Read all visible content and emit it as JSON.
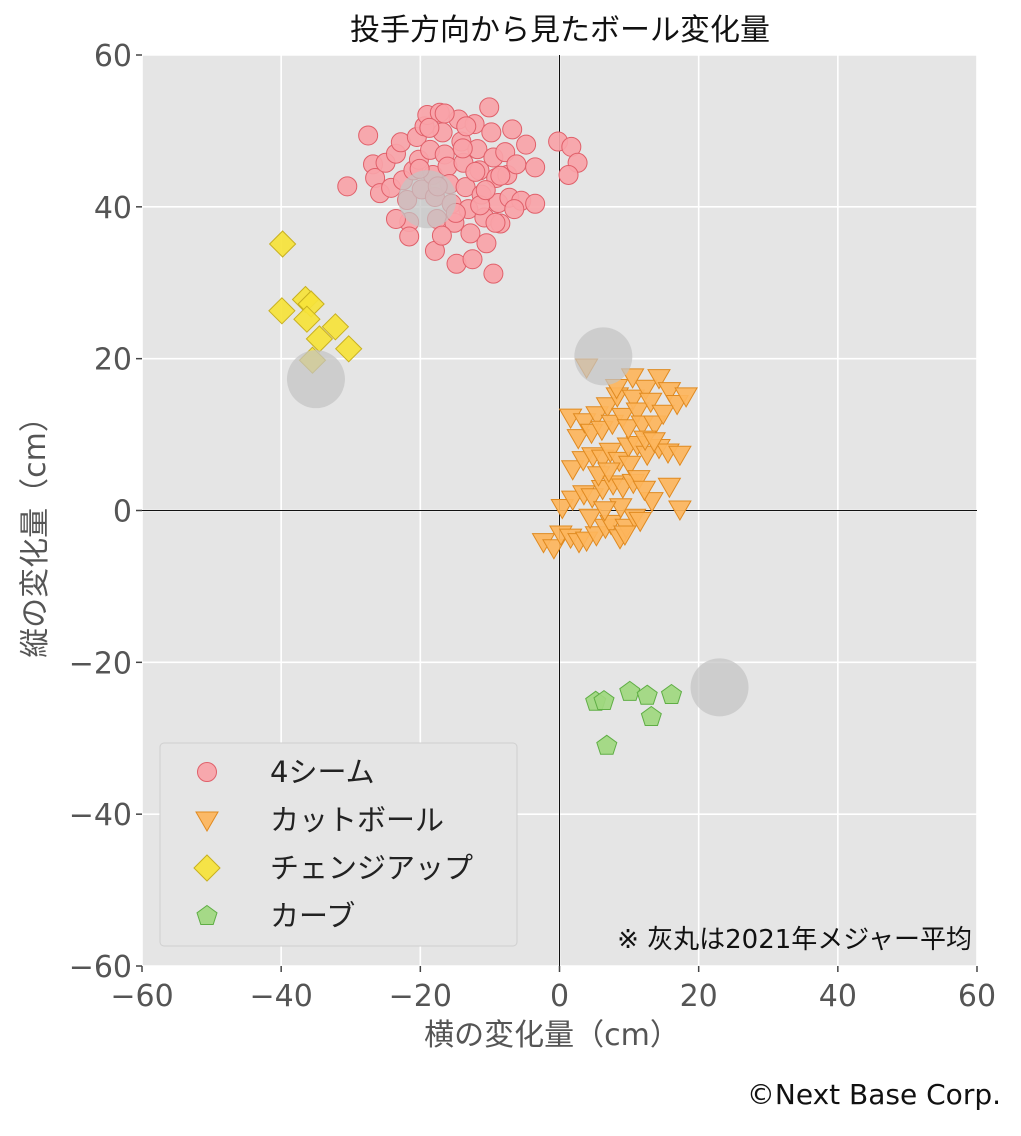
{
  "chart_data": {
    "type": "scatter",
    "title": "投手方向から見たボール変化量",
    "xlabel": "横の変化量（cm）",
    "ylabel": "縦の変化量（cm）",
    "xlim": [
      -60,
      60
    ],
    "ylim": [
      -60,
      60
    ],
    "xticks": [
      -60,
      -40,
      -20,
      0,
      20,
      40,
      60
    ],
    "yticks": [
      -60,
      -40,
      -20,
      0,
      20,
      40,
      60
    ],
    "xtick_labels": [
      "−60",
      "−40",
      "−20",
      "0",
      "20",
      "40",
      "60"
    ],
    "ytick_labels": [
      "−60",
      "−40",
      "−20",
      "0",
      "20",
      "40",
      "60"
    ],
    "grid": true,
    "legend_position": "bottom-left",
    "annotation": "※ 灰丸は2021年メジャー平均",
    "credit": "©Next Base Corp.",
    "colors": {
      "background": "#e5e5e5",
      "four_seam": "#f9a3a8",
      "four_seam_edge": "#e0606a",
      "cutter": "#fdb55c",
      "cutter_edge": "#e08a20",
      "changeup": "#f6e33a",
      "changeup_edge": "#c8b020",
      "curve": "#9fd87f",
      "curve_edge": "#5fae45",
      "average": "#c4c4c4"
    },
    "averages": [
      {
        "x": -19,
        "y": 41
      },
      {
        "x": -35,
        "y": 17.3
      },
      {
        "x": 6.3,
        "y": 20.3
      },
      {
        "x": 23,
        "y": -23.3
      }
    ],
    "series": [
      {
        "name": "4シーム",
        "marker": "circle",
        "points": [
          [
            -27.5,
            49.4
          ],
          [
            -26.8,
            45.6
          ],
          [
            -26.5,
            43.8
          ],
          [
            -25.8,
            41.8
          ],
          [
            -25,
            45.8
          ],
          [
            -24.2,
            42.5
          ],
          [
            -23.5,
            47
          ],
          [
            -22.8,
            48.5
          ],
          [
            -22.5,
            43.5
          ],
          [
            -21.9,
            40.9
          ],
          [
            -21.6,
            38
          ],
          [
            -21.6,
            36.1
          ],
          [
            -21,
            44.8
          ],
          [
            -20.5,
            49.2
          ],
          [
            -20.2,
            46.2
          ],
          [
            -19.8,
            42.3
          ],
          [
            -19.4,
            50.6
          ],
          [
            -19,
            52.1
          ],
          [
            -18.6,
            47.5
          ],
          [
            -18.2,
            44.2
          ],
          [
            -17.9,
            41.3
          ],
          [
            -17.6,
            38.4
          ],
          [
            -17.9,
            34.2
          ],
          [
            -17.2,
            52.4
          ],
          [
            -16.8,
            49.8
          ],
          [
            -16.5,
            46.9
          ],
          [
            -16.1,
            45.3
          ],
          [
            -15.8,
            43
          ],
          [
            -15.5,
            40.4
          ],
          [
            -15.1,
            37.9
          ],
          [
            -14.8,
            32.5
          ],
          [
            -14.5,
            51.5
          ],
          [
            -14.1,
            48.6
          ],
          [
            -13.8,
            45.8
          ],
          [
            -13.5,
            42.6
          ],
          [
            -13.1,
            39.7
          ],
          [
            -12.8,
            36.5
          ],
          [
            -12.5,
            33.1
          ],
          [
            -12.2,
            50.9
          ],
          [
            -11.8,
            47.6
          ],
          [
            -11.5,
            44.8
          ],
          [
            -11.2,
            41.6
          ],
          [
            -10.8,
            38.6
          ],
          [
            -10.5,
            35.2
          ],
          [
            -10.1,
            53.1
          ],
          [
            -9.8,
            49.8
          ],
          [
            -9.5,
            46.5
          ],
          [
            -9.1,
            43.8
          ],
          [
            -8.8,
            40.5
          ],
          [
            -8.5,
            37.8
          ],
          [
            -9.5,
            31.2
          ],
          [
            -7.8,
            47.2
          ],
          [
            -7.5,
            44.2
          ],
          [
            -7.2,
            41.2
          ],
          [
            -6.8,
            50.2
          ],
          [
            -6.2,
            45.6
          ],
          [
            -5.5,
            40.8
          ],
          [
            -4.8,
            48.2
          ],
          [
            -3.5,
            45.2
          ],
          [
            -3.5,
            40.4
          ],
          [
            -30.5,
            42.7
          ],
          [
            -0.2,
            48.6
          ],
          [
            1.7,
            47.9
          ],
          [
            2.6,
            45.8
          ],
          [
            1.3,
            44.2
          ],
          [
            -16.9,
            36.2
          ],
          [
            -13.4,
            50.6
          ],
          [
            -11.4,
            40.2
          ],
          [
            -9.2,
            37.9
          ],
          [
            -12.1,
            44.6
          ],
          [
            -14.9,
            39.2
          ],
          [
            -8.5,
            44.1
          ],
          [
            -6.5,
            39.7
          ],
          [
            -17.5,
            42.7
          ],
          [
            -20.1,
            45
          ],
          [
            -23.5,
            38.4
          ],
          [
            -18.7,
            50.4
          ],
          [
            -10.6,
            42.2
          ],
          [
            -13.9,
            47.7
          ],
          [
            -16.5,
            52.3
          ]
        ]
      },
      {
        "name": "カットボール",
        "marker": "triangle-down",
        "points": [
          [
            -2.3,
            -4.1
          ],
          [
            -0.8,
            -4.9
          ],
          [
            0.2,
            -3.1
          ],
          [
            1.6,
            -3.5
          ],
          [
            2.8,
            -4.1
          ],
          [
            3.9,
            -3.9
          ],
          [
            5.3,
            -3.2
          ],
          [
            6.6,
            -2.2
          ],
          [
            7.4,
            -1.7
          ],
          [
            8.7,
            -3.6
          ],
          [
            9.6,
            -2.2
          ],
          [
            10.8,
            -0.9
          ],
          [
            11.6,
            -1.3
          ],
          [
            0.4,
            0.4
          ],
          [
            1.9,
            1.5
          ],
          [
            3.5,
            2.2
          ],
          [
            4.7,
            1.8
          ],
          [
            6.2,
            2.9
          ],
          [
            7.7,
            3.5
          ],
          [
            9.1,
            3.1
          ],
          [
            10.6,
            3.7
          ],
          [
            13.3,
            1.3
          ],
          [
            15.8,
            3.2
          ],
          [
            17.3,
            0.2
          ],
          [
            1.9,
            5.5
          ],
          [
            3.4,
            6.7
          ],
          [
            4.8,
            7.2
          ],
          [
            6.2,
            6.9
          ],
          [
            7.3,
            7.8
          ],
          [
            8.6,
            6.6
          ],
          [
            9.9,
            8.5
          ],
          [
            11.2,
            8.7
          ],
          [
            12.6,
            7.4
          ],
          [
            14.3,
            8.3
          ],
          [
            15.6,
            7.7
          ],
          [
            17.3,
            7.4
          ],
          [
            1.6,
            12.3
          ],
          [
            2.7,
            9.6
          ],
          [
            3.6,
            11.7
          ],
          [
            4.6,
            10.3
          ],
          [
            5.4,
            12.6
          ],
          [
            6.1,
            10.7
          ],
          [
            6.9,
            13.8
          ],
          [
            7.6,
            11.5
          ],
          [
            8.3,
            15.1
          ],
          [
            9.1,
            12.4
          ],
          [
            9.9,
            10.9
          ],
          [
            10.6,
            14.8
          ],
          [
            11.2,
            13.1
          ],
          [
            11.9,
            11.4
          ],
          [
            12.4,
            16.1
          ],
          [
            13.1,
            14.4
          ],
          [
            13.7,
            11.4
          ],
          [
            14.3,
            17.5
          ],
          [
            14.9,
            12.8
          ],
          [
            15.8,
            15.8
          ],
          [
            16.9,
            14.1
          ],
          [
            18.2,
            15.1
          ],
          [
            3.9,
            18.9
          ],
          [
            8.2,
            16.2
          ],
          [
            10.5,
            17.6
          ],
          [
            12.3,
            9.4
          ],
          [
            5.6,
            4.7
          ],
          [
            7.1,
            5.2
          ],
          [
            8.8,
            0.5
          ],
          [
            10.1,
            6.1
          ],
          [
            4.4,
            -0.9
          ],
          [
            11.4,
            4.2
          ],
          [
            9.4,
            -3.1
          ],
          [
            13.6,
            9.2
          ],
          [
            6.5,
            0.1
          ],
          [
            12.2,
            2.8
          ]
        ]
      },
      {
        "name": "チェンジアップ",
        "marker": "diamond",
        "points": [
          [
            -39.8,
            35.1
          ],
          [
            -39.9,
            26.3
          ],
          [
            -36.5,
            27.8
          ],
          [
            -35.7,
            27.2
          ],
          [
            -36.3,
            25.2
          ],
          [
            -32.2,
            24.2
          ],
          [
            -34.5,
            22.6
          ],
          [
            -30.3,
            21.3
          ],
          [
            -35.5,
            19.8
          ]
        ]
      },
      {
        "name": "カーブ",
        "marker": "pentagon",
        "points": [
          [
            5.2,
            -25.2
          ],
          [
            6.4,
            -25.1
          ],
          [
            6.8,
            -31
          ],
          [
            10.1,
            -23.9
          ],
          [
            12.6,
            -24.4
          ],
          [
            13.2,
            -27.2
          ],
          [
            16.1,
            -24.3
          ]
        ]
      }
    ]
  }
}
